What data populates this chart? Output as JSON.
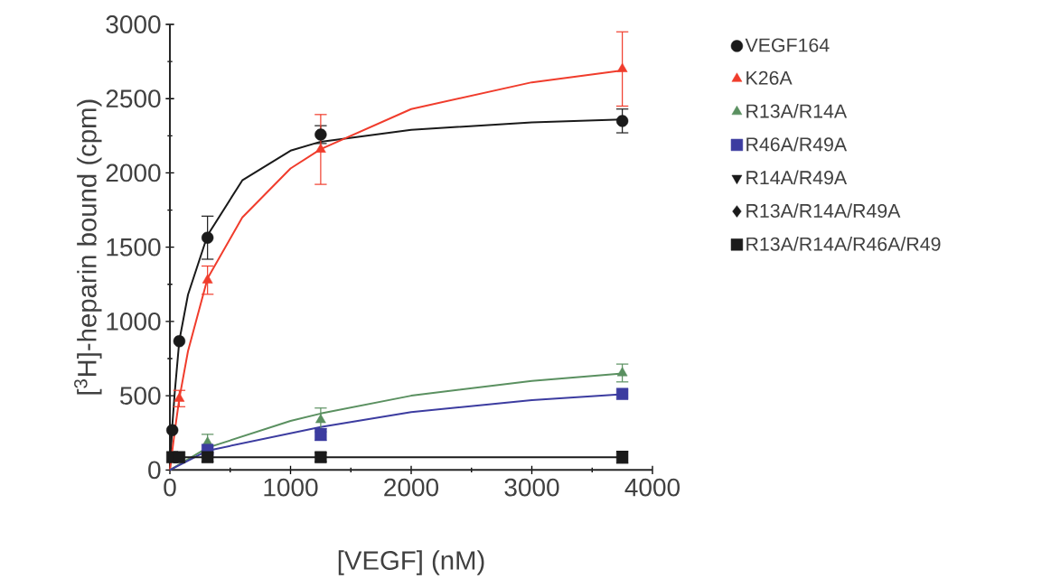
{
  "chart_data": {
    "type": "scatter",
    "xlabel": "[VEGF] (nM)",
    "ylabel": "[$^{3}$H]-heparin bound (cpm)",
    "x": [
      20,
      78,
      312,
      1250,
      3750
    ],
    "xlim": [
      0,
      4000
    ],
    "xticks": [
      0,
      1000,
      2000,
      3000,
      4000
    ],
    "ylim": [
      0,
      3000
    ],
    "yticks": [
      0,
      500,
      1000,
      1500,
      2000,
      2500,
      3000
    ],
    "grid": false,
    "legend": "right",
    "series": [
      {
        "name": "VEGF164",
        "color": "#1a1a1a",
        "marker": "circle",
        "values": [
          268,
          867,
          1564,
          2258,
          2350
        ],
        "errors": [
          null,
          null,
          145,
          60,
          80
        ]
      },
      {
        "name": "K26A",
        "color": "#f03c2c",
        "marker": "triangle",
        "values": [
          null,
          481,
          1278,
          2158,
          2700
        ],
        "errors": [
          null,
          55,
          95,
          235,
          250
        ]
      },
      {
        "name": "R13A/R14A",
        "color": "#5a9060",
        "marker": "triangle",
        "values": [
          null,
          null,
          185,
          337,
          653
        ],
        "errors": [
          null,
          null,
          55,
          80,
          60
        ]
      },
      {
        "name": "R46A/R49A",
        "color": "#3c3ca0",
        "marker": "square",
        "values": [
          null,
          null,
          135,
          239,
          512
        ],
        "errors": [
          null,
          null,
          null,
          40,
          null
        ]
      },
      {
        "name": "R14A/R49A",
        "color": "#1a1a1a",
        "marker": "triangle down",
        "values": [
          null,
          null,
          null,
          null,
          null
        ],
        "errors": [
          null,
          null,
          null,
          null,
          null
        ]
      },
      {
        "name": "R13A/R14A/R49A",
        "color": "#1a1a1a",
        "marker": "diamond",
        "values": [
          null,
          null,
          null,
          null,
          null
        ],
        "errors": [
          null,
          null,
          null,
          null,
          null
        ]
      },
      {
        "name": "R13A/R14A/R46A/R49",
        "color": "#1a1a1a",
        "marker": "square",
        "values": [
          86,
          86,
          86,
          86,
          86
        ],
        "errors": [
          null,
          null,
          30,
          30,
          40
        ]
      },
      {
        "type": "line",
        "color": "#1a1a1a",
        "x": [
          0,
          20,
          40,
          78,
          150,
          312,
          600,
          1000,
          1250,
          2000,
          3000,
          3750
        ],
        "values": [
          0,
          300,
          520,
          870,
          1180,
          1580,
          1950,
          2150,
          2210,
          2290,
          2340,
          2360
        ]
      },
      {
        "type": "line",
        "color": "#f03c2c",
        "x": [
          0,
          40,
          78,
          150,
          312,
          600,
          1000,
          1250,
          2000,
          3000,
          3750
        ],
        "values": [
          0,
          260,
          480,
          800,
          1290,
          1700,
          2030,
          2160,
          2430,
          2610,
          2690
        ]
      },
      {
        "type": "line",
        "color": "#5a9060",
        "x": [
          0,
          312,
          1000,
          1250,
          2000,
          3000,
          3750
        ],
        "values": [
          0,
          150,
          330,
          380,
          500,
          600,
          650
        ]
      },
      {
        "type": "line",
        "color": "#3c3ca0",
        "x": [
          0,
          312,
          1250,
          2000,
          3000,
          3750
        ],
        "values": [
          0,
          130,
          290,
          390,
          470,
          510
        ]
      },
      {
        "type": "line",
        "color": "#1a1a1a",
        "x": [
          0,
          3750
        ],
        "values": [
          85,
          85
        ]
      }
    ]
  }
}
